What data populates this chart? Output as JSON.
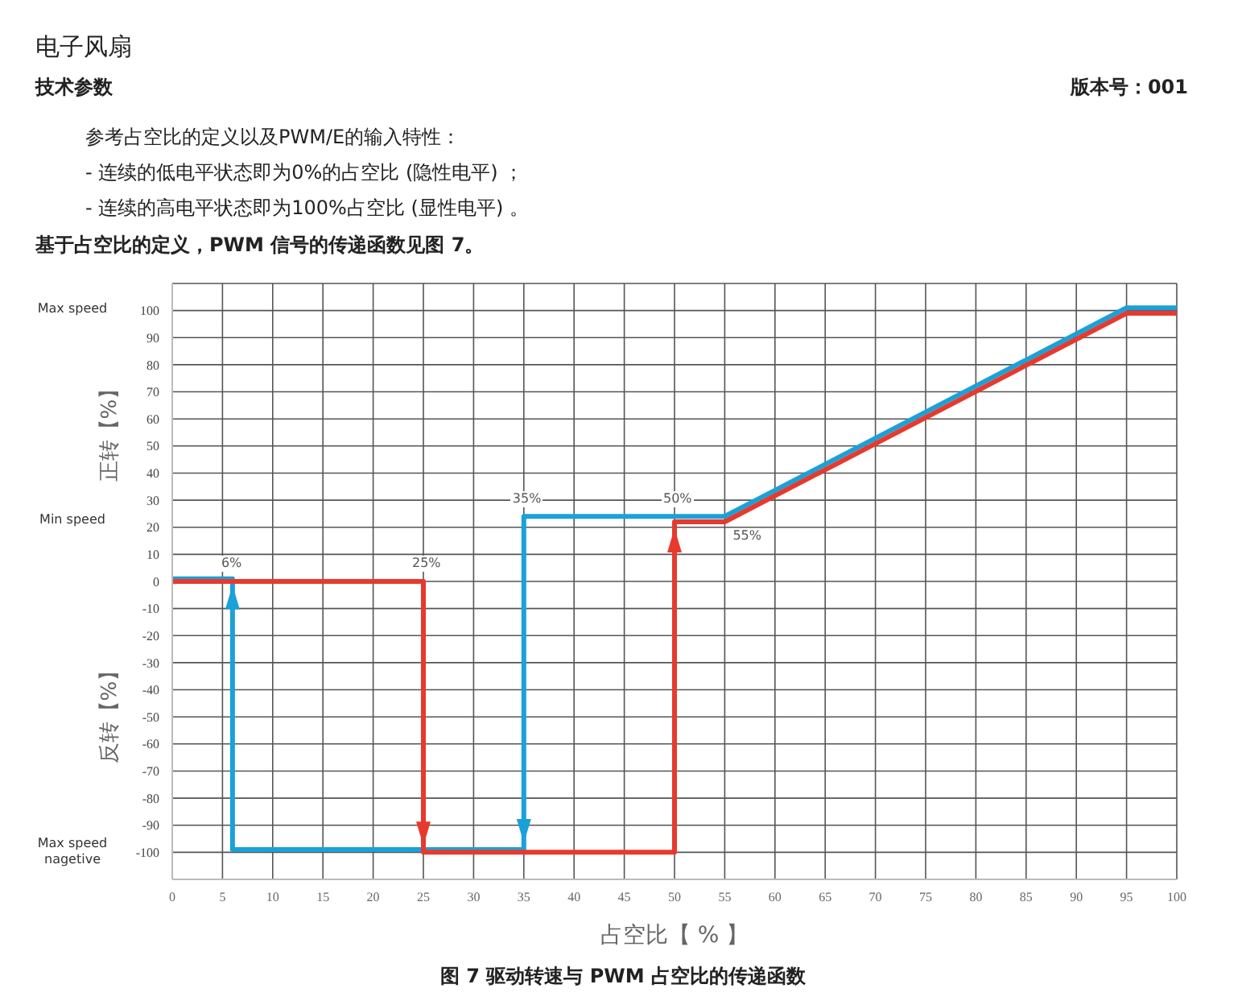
{
  "chart_data": {
    "type": "line",
    "title": "电子风扇",
    "subtitle": "技术参数",
    "xlabel": "占空比【 % 】",
    "ylabel": "正转【%】",
    "annotations": [
      "版本号：001",
      "参考占空比的定义以及PWM/E的输入特性：",
      "- 连续的低电平状态即为0%的占空比 (隐性电平) ；",
      "- 连续的高电平状态即为100%占空比 (显性电平) 。",
      "基于占空比的定义，PWM 信号的传递函数见图 7。",
      "图  7 驱动转速与 PWM 占空比的传递函数",
      "反转【%】",
      "Max speed",
      "Min speed",
      "Max speed nagetive",
      {
        "text": "6%",
        "x": 6,
        "y": 0
      },
      {
        "text": "25%",
        "x": 25,
        "y": 0
      },
      {
        "text": "35%",
        "x": 35,
        "y": 24
      },
      {
        "text": "50%",
        "x": 50,
        "y": 24
      },
      {
        "text": "55%",
        "x": 55,
        "y": 22
      }
    ],
    "series": [
      {
        "color": "#1ba1d8",
        "x": [
          0,
          6,
          6,
          35,
          35,
          55,
          95,
          100
        ],
        "values": [
          1,
          1,
          -99,
          -99,
          24,
          24,
          101,
          101
        ]
      },
      {
        "color": "#e63a2e",
        "x": [
          0,
          25,
          25,
          50,
          50,
          55,
          95,
          100
        ],
        "values": [
          0,
          0,
          -100,
          -100,
          22,
          22,
          99,
          99
        ]
      }
    ],
    "xlim": [
      0,
      100
    ],
    "xticks": [
      0,
      5,
      10,
      15,
      20,
      25,
      30,
      35,
      40,
      45,
      50,
      55,
      60,
      65,
      70,
      75,
      80,
      85,
      90,
      95,
      100
    ],
    "ylim": [
      -110,
      110
    ],
    "yticks": [
      {
        "value": -110,
        "label": null
      },
      -100,
      -90,
      -80,
      -70,
      -60,
      -50,
      -40,
      -30,
      -20,
      -10,
      0,
      10,
      20,
      30,
      40,
      50,
      60,
      70,
      80,
      90,
      100,
      {
        "value": 110,
        "label": null
      }
    ],
    "grid": true,
    "marker": "none",
    "line_style": "solid"
  }
}
